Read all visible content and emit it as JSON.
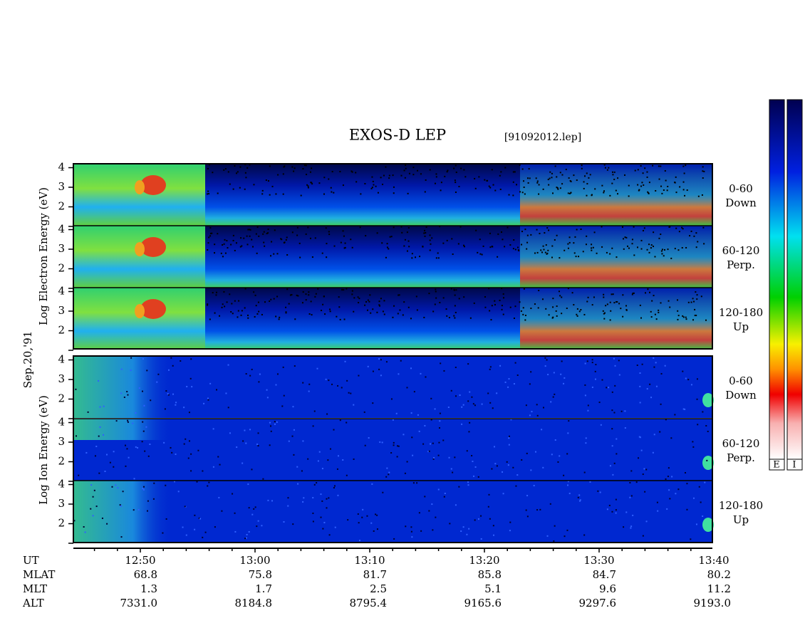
{
  "header": {
    "title": "EXOS-D LEP",
    "file": "[91092012.lep]"
  },
  "date": "Sep.20,'91",
  "electron": {
    "axis_label": "Log Electron Energy (eV)",
    "panels": [
      {
        "angle": "0-60",
        "direction": "Down"
      },
      {
        "angle": "60-120",
        "direction": "Perp."
      },
      {
        "angle": "120-180",
        "direction": "Up"
      }
    ]
  },
  "ion": {
    "axis_label": "Log Ion Energy (eV)",
    "panels": [
      {
        "angle": "0-60",
        "direction": "Down"
      },
      {
        "angle": "60-120",
        "direction": "Perp."
      },
      {
        "angle": "120-180",
        "direction": "Up"
      }
    ]
  },
  "energy_ticks": [
    2,
    3,
    4
  ],
  "time_ticks": [
    "12:50",
    "13:00",
    "13:10",
    "13:20",
    "13:30",
    "13:40"
  ],
  "orbit": {
    "rows": [
      {
        "label": "UT"
      },
      {
        "label": "MLAT",
        "values": [
          "68.8",
          "75.8",
          "81.7",
          "85.8",
          "84.7",
          "80.2"
        ]
      },
      {
        "label": "MLT",
        "values": [
          "1.3",
          "1.7",
          "2.5",
          "5.1",
          "9.6",
          "11.2"
        ]
      },
      {
        "label": "ALT",
        "values": [
          "7331.0",
          "8184.8",
          "8795.4",
          "9165.6",
          "9297.6",
          "9193.0"
        ]
      }
    ]
  },
  "colorbars": [
    "E",
    "I"
  ]
}
